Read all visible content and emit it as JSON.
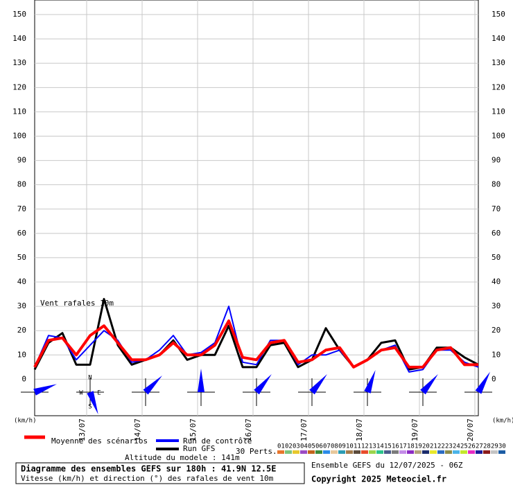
{
  "chart_data": {
    "type": "line",
    "annotation": "Vent rafales 10m",
    "y_unit_left": "(km/h)",
    "y_unit_right": "(km/h)",
    "xlim": [
      0,
      192
    ],
    "xticks": [
      {
        "value": 19.5,
        "label": "13/07"
      },
      {
        "value": 43.5,
        "label": "14/07"
      },
      {
        "value": 67.5,
        "label": "15/07"
      },
      {
        "value": 91.5,
        "label": "16/07"
      },
      {
        "value": 115.5,
        "label": "17/07"
      },
      {
        "value": 139.5,
        "label": "18/07"
      },
      {
        "value": 163.5,
        "label": "19/07"
      },
      {
        "value": 187.5,
        "label": "20/07"
      }
    ],
    "ylim": [
      -15,
      156
    ],
    "yticks": [
      0,
      10,
      20,
      30,
      40,
      50,
      60,
      70,
      80,
      90,
      100,
      110,
      120,
      130,
      140,
      150
    ],
    "grid": true,
    "x": [
      0,
      6,
      12,
      18,
      24,
      30,
      36,
      42,
      48,
      54,
      60,
      66,
      72,
      78,
      84,
      90,
      96,
      102,
      108,
      114,
      120,
      126,
      132,
      138,
      144,
      150,
      156,
      162,
      168,
      174,
      180,
      186,
      192
    ],
    "series": [
      {
        "name": "Run GFS",
        "color": "#000000",
        "width": 3,
        "values": [
          4,
          15,
          19,
          6,
          6,
          33,
          14,
          6,
          8,
          10,
          16,
          8,
          10,
          10,
          22,
          5,
          5,
          14,
          15,
          5,
          8,
          21,
          12,
          5,
          8,
          15,
          16,
          4,
          5,
          13,
          13,
          9,
          6
        ]
      },
      {
        "name": "Run de contrôle",
        "color": "#0000ff",
        "width": 2,
        "values": [
          5,
          18,
          17,
          8,
          14,
          20,
          16,
          7,
          8,
          12,
          18,
          10,
          11,
          15,
          30,
          7,
          6,
          16,
          16,
          6,
          10,
          10,
          12,
          5,
          8,
          12,
          14,
          3,
          4,
          12,
          12,
          7,
          5
        ]
      },
      {
        "name": "Moyenne des scénarios",
        "color": "#ff0000",
        "width": 4,
        "values": [
          5,
          16,
          17,
          10,
          18,
          22,
          15,
          8,
          8,
          10,
          15,
          10,
          10,
          14,
          24,
          9,
          8,
          15,
          16,
          7,
          8,
          12,
          13,
          5,
          8,
          12,
          13,
          5,
          5,
          12,
          13,
          6,
          6
        ]
      }
    ],
    "wind_direction": {
      "x": [
        0,
        24,
        48,
        72,
        96,
        120,
        144,
        168,
        192
      ],
      "values": [
        70,
        160,
        45,
        0,
        40,
        40,
        20,
        40,
        30
      ],
      "color": "#0000ff",
      "compass": [
        "N",
        "E",
        "S",
        "W"
      ]
    },
    "perturbations_label": "30 Perts.",
    "perturbations": [
      {
        "name": "01",
        "color": "#e8762c"
      },
      {
        "name": "02",
        "color": "#7cc47c"
      },
      {
        "name": "03",
        "color": "#e8c82c"
      },
      {
        "name": "04",
        "color": "#9c4cc4"
      },
      {
        "name": "05",
        "color": "#c4641c"
      },
      {
        "name": "06",
        "color": "#3c8c3c"
      },
      {
        "name": "07",
        "color": "#2c8ce8"
      },
      {
        "name": "08",
        "color": "#e8c89c"
      },
      {
        "name": "09",
        "color": "#2c9cb4"
      },
      {
        "name": "10",
        "color": "#a47c4c"
      },
      {
        "name": "11",
        "color": "#5c4c3c"
      },
      {
        "name": "12",
        "color": "#e84c2c"
      },
      {
        "name": "13",
        "color": "#9cd44c"
      },
      {
        "name": "14",
        "color": "#2cc48c"
      },
      {
        "name": "15",
        "color": "#4c5c8c"
      },
      {
        "name": "16",
        "color": "#7c7c7c"
      },
      {
        "name": "17",
        "color": "#c48ce8"
      },
      {
        "name": "18",
        "color": "#8c2cc4"
      },
      {
        "name": "19",
        "color": "#b4a47c"
      },
      {
        "name": "20",
        "color": "#1c2c6c"
      },
      {
        "name": "21",
        "color": "#e8e82c"
      },
      {
        "name": "22",
        "color": "#2c6cc4"
      },
      {
        "name": "23",
        "color": "#8c8c4c"
      },
      {
        "name": "24",
        "color": "#4cb4e8"
      },
      {
        "name": "25",
        "color": "#c4e82c"
      },
      {
        "name": "26",
        "color": "#e82cc4"
      },
      {
        "name": "27",
        "color": "#1c1c9c"
      },
      {
        "name": "28",
        "color": "#8c1c1c"
      },
      {
        "name": "29",
        "color": "#c4c4c4"
      },
      {
        "name": "30",
        "color": "#1c5ca4"
      }
    ],
    "altitude": "Altitude du modele : 141m",
    "title": "Diagramme des ensembles GEFS sur 180h : 41.9N 12.5E",
    "subtitle": "Vitesse (km/h) et direction (°) des rafales de vent 10m",
    "run_info": "Ensemble GEFS du 12/07/2025 - 06Z",
    "copyright": "Copyright 2025 Meteociel.fr"
  }
}
